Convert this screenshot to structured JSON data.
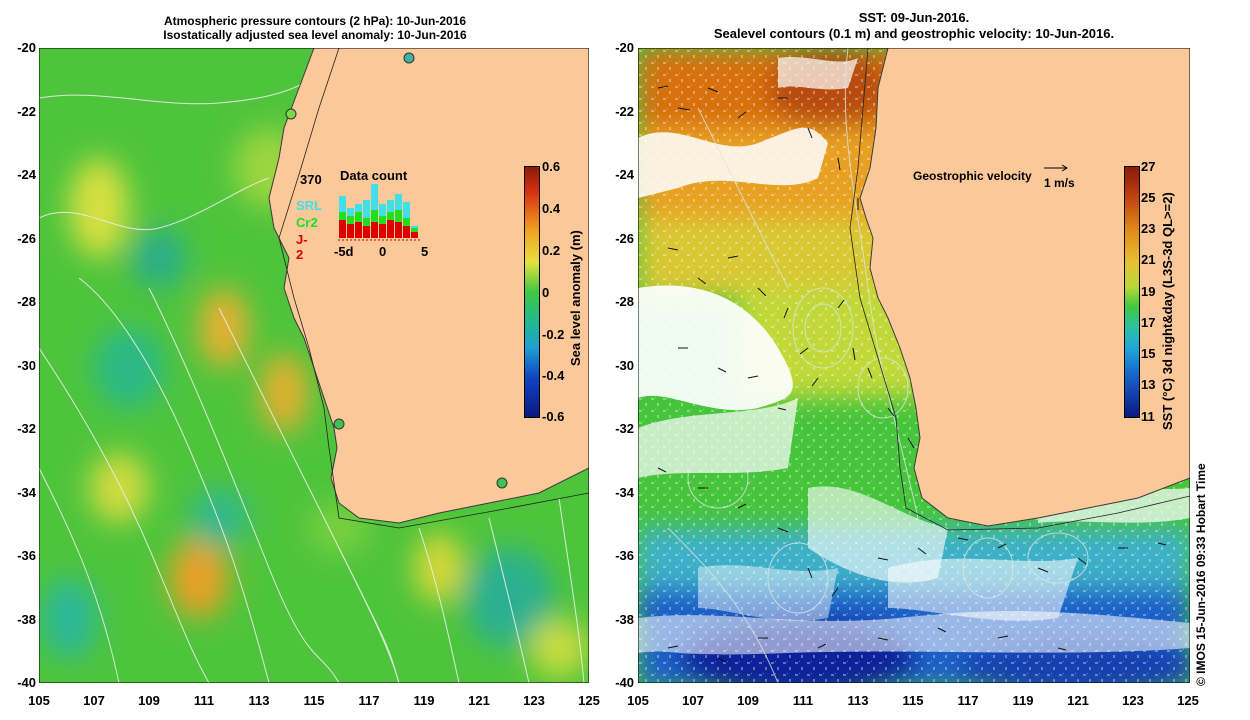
{
  "left_panel": {
    "title_line1": "Atmospheric pressure contours (2 hPa): 10-Jun-2016",
    "title_line2": "Isostatically adjusted sea level anomaly: 10-Jun-2016",
    "colorbar_label": "Sea level anomaly (m)",
    "colorbar_ticks": [
      "0.6",
      "0.4",
      "0.2",
      "0",
      "-0.2",
      "-0.4",
      "-0.6"
    ],
    "inset": {
      "count": "370",
      "title": "Data count",
      "legend": [
        {
          "label": "SRL",
          "color": "#3fe0e8"
        },
        {
          "label": "Cr2",
          "color": "#22dd22"
        },
        {
          "label": "J-2",
          "color": "#dd0000"
        }
      ],
      "xticks": [
        "-5d",
        "0",
        "5"
      ]
    }
  },
  "right_panel": {
    "title_line1": "SST: 09-Jun-2016.",
    "title_line2": "Sealevel contours (0.1 m) and geostrophic velocity: 10-Jun-2016.",
    "velocity_label": "Geostrophic velocity",
    "velocity_scale": "1 m/s",
    "colorbar_label": "SST (°C) 3d night&day (L3S-3d QL>=2)",
    "colorbar_ticks": [
      "27",
      "25",
      "23",
      "21",
      "19",
      "17",
      "15",
      "13",
      "11"
    ]
  },
  "axes": {
    "yticks": [
      "-20",
      "-22",
      "-24",
      "-26",
      "-28",
      "-30",
      "-32",
      "-34",
      "-36",
      "-38",
      "-40"
    ],
    "xticks": [
      "105",
      "107",
      "109",
      "111",
      "113",
      "115",
      "117",
      "119",
      "121",
      "123",
      "125"
    ]
  },
  "credit": "© IMOS 15-Jun-2016 09:33 Hobart Time",
  "colors": {
    "land": "#fbc89a",
    "sla_green": "#3ec83a",
    "sst_warm": "#e07a10",
    "sst_cool": "#1e78d8"
  }
}
